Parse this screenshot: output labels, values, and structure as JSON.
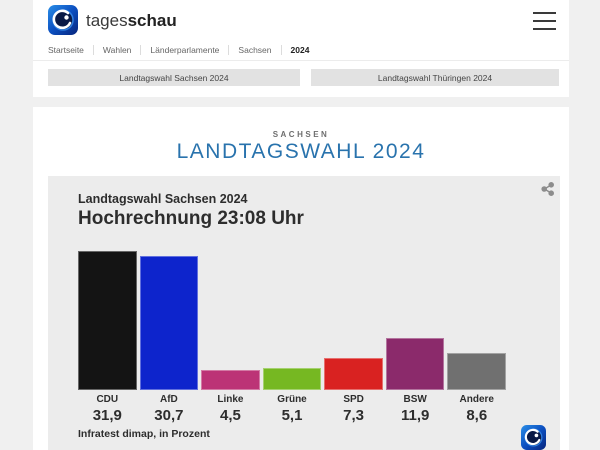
{
  "header": {
    "brand_regular": "tages",
    "brand_bold": "schau",
    "breadcrumb": [
      "Startseite",
      "Wahlen",
      "Länderparlamente",
      "Sachsen",
      "2024"
    ],
    "tabs": [
      {
        "label": "Landtagswahl Sachsen 2024"
      },
      {
        "label": "Landtagswahl Thüringen 2024"
      }
    ]
  },
  "page": {
    "kicker": "SACHSEN",
    "title": "LANDTAGSWAHL 2024"
  },
  "chart_data": {
    "type": "bar",
    "title": "Landtagswahl Sachsen 2024",
    "subtitle": "Hochrechnung 23:08 Uhr",
    "source": "Infratest dimap, in Prozent",
    "categories": [
      "CDU",
      "AfD",
      "Linke",
      "Grüne",
      "SPD",
      "BSW",
      "Andere"
    ],
    "values": [
      31.9,
      30.7,
      4.5,
      5.1,
      7.3,
      11.9,
      8.6
    ],
    "value_labels": [
      "31,9",
      "30,7",
      "4,5",
      "5,1",
      "7,3",
      "11,9",
      "8,6"
    ],
    "colors": [
      "#141414",
      "#0d24cc",
      "#bc3376",
      "#76b822",
      "#d92221",
      "#8b2a6b",
      "#707070"
    ],
    "ylim": [
      0,
      32
    ],
    "grid": false,
    "legend": false
  },
  "colors": {
    "accent_blue_title": "#2973ad",
    "chart_background": "#ececec",
    "page_background": "#f0f0f0"
  }
}
